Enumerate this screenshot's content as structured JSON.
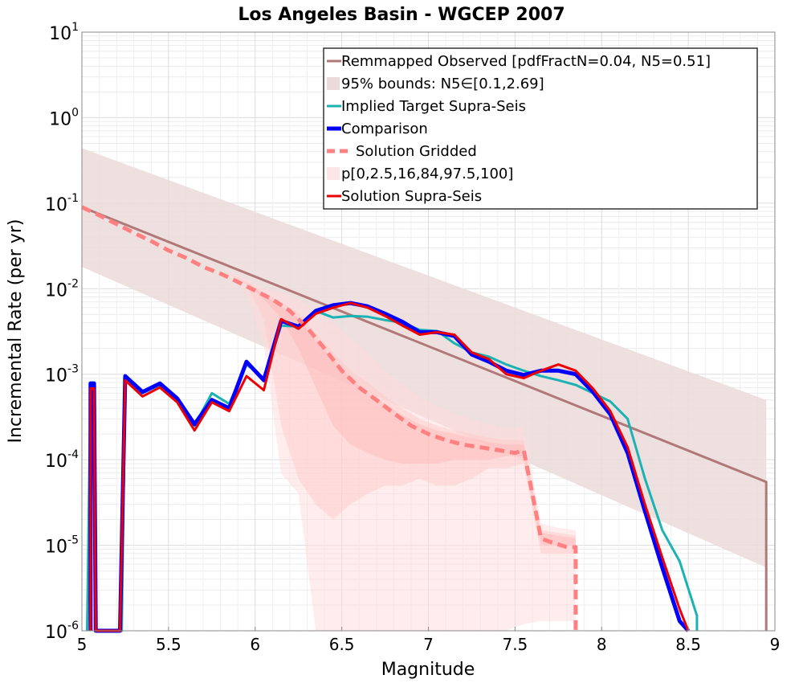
{
  "chart_data": {
    "type": "line",
    "title": "Los Angeles Basin - WGCEP 2007",
    "xlabel": "Magnitude",
    "ylabel": "Incremental Rate (per yr)",
    "xlim": [
      5,
      9
    ],
    "ylim_log10": [
      -6,
      1
    ],
    "y_scale": "log",
    "grid": true,
    "legend_position": "top-right",
    "x_ticks": [
      "5",
      "5.5",
      "6",
      "6.5",
      "7",
      "7.5",
      "8",
      "8.5",
      "9"
    ],
    "y_ticks": [
      {
        "base": "10",
        "exp": "1"
      },
      {
        "base": "10",
        "exp": "0"
      },
      {
        "base": "10",
        "exp": "-1"
      },
      {
        "base": "10",
        "exp": "-2"
      },
      {
        "base": "10",
        "exp": "-3"
      },
      {
        "base": "10",
        "exp": "-4"
      },
      {
        "base": "10",
        "exp": "-5"
      },
      {
        "base": "10",
        "exp": "-6"
      }
    ],
    "legend": [
      {
        "label": "Remmapped Observed [pdfFractN=0.04, N5=0.51]",
        "style": "line",
        "color": "#b07878",
        "width": 3
      },
      {
        "label": "95% bounds: N5∈[0.1,2.69]",
        "style": "band",
        "color": "#ecdada"
      },
      {
        "label": "Implied Target Supra-Seis",
        "style": "line",
        "color": "#1ab3b3",
        "width": 3
      },
      {
        "label": "Comparison",
        "style": "line",
        "color": "#0000ff",
        "width": 5
      },
      {
        "label": "Solution Gridded",
        "style": "dash",
        "color": "#ff8080",
        "width": 5
      },
      {
        "label": "p[0,2.5,16,84,97.5,100]",
        "style": "band",
        "color": "#ffe6e6"
      },
      {
        "label": "Solution Supra-Seis",
        "style": "line",
        "color": "#ee0000",
        "width": 3
      }
    ],
    "series": {
      "observed": {
        "color": "#b07878",
        "x": [
          5.0,
          8.95,
          8.95
        ],
        "y": [
          0.09,
          5.5e-05,
          1e-06
        ]
      },
      "observed_bounds": {
        "color": "#ecdada",
        "x": [
          5.0,
          8.95
        ],
        "lower": [
          0.018,
          5.5e-06
        ],
        "upper": [
          0.44,
          0.0005
        ]
      },
      "implied_target": {
        "color": "#1ab3b3",
        "x": [
          5.03,
          5.05,
          5.07,
          5.08,
          5.23,
          5.25,
          5.35,
          5.45,
          5.55,
          5.65,
          5.75,
          5.85,
          5.95,
          6.05,
          6.15,
          6.25,
          6.35,
          6.45,
          6.55,
          6.65,
          6.75,
          6.85,
          6.95,
          7.05,
          7.15,
          7.25,
          7.35,
          7.45,
          7.55,
          7.65,
          7.75,
          7.85,
          7.95,
          8.05,
          8.15,
          8.25,
          8.35,
          8.45,
          8.55,
          8.55
        ],
        "y": [
          1e-06,
          0.0008,
          0.0008,
          1e-06,
          1e-06,
          0.00095,
          0.0006,
          0.00075,
          0.0005,
          0.00025,
          0.0006,
          0.00045,
          0.0013,
          0.0009,
          0.0037,
          0.0036,
          0.0055,
          0.0046,
          0.0048,
          0.0047,
          0.0043,
          0.004,
          0.0033,
          0.0032,
          0.0023,
          0.0018,
          0.0016,
          0.0013,
          0.0011,
          0.00095,
          0.00085,
          0.00075,
          0.0006,
          0.00048,
          0.0003,
          6e-05,
          1.5e-05,
          6.5e-06,
          1.5e-06,
          1e-06
        ]
      },
      "comparison": {
        "color": "#0000ff",
        "x": [
          5.05,
          5.05,
          5.07,
          5.08,
          5.22,
          5.25,
          5.35,
          5.45,
          5.55,
          5.65,
          5.75,
          5.85,
          5.95,
          6.05,
          6.15,
          6.25,
          6.35,
          6.45,
          6.55,
          6.65,
          6.75,
          6.85,
          6.95,
          7.05,
          7.15,
          7.25,
          7.35,
          7.45,
          7.55,
          7.65,
          7.75,
          7.85,
          7.95,
          8.05,
          8.15,
          8.25,
          8.35,
          8.45,
          8.5
        ],
        "y": [
          1e-06,
          0.00078,
          0.00078,
          1e-06,
          1e-06,
          0.00095,
          0.00062,
          0.00078,
          0.00052,
          0.00026,
          0.0005,
          0.0004,
          0.0014,
          0.00085,
          0.0042,
          0.0036,
          0.0055,
          0.0064,
          0.0068,
          0.0062,
          0.0051,
          0.0041,
          0.0031,
          0.0031,
          0.0028,
          0.0017,
          0.0014,
          0.0011,
          0.00098,
          0.0011,
          0.0011,
          0.001,
          0.00062,
          0.00034,
          0.00012,
          2.5e-05,
          5.5e-06,
          1.3e-06,
          1e-06
        ]
      },
      "solution_supra": {
        "color": "#ee0000",
        "x": [
          5.05,
          5.05,
          5.07,
          5.08,
          5.22,
          5.25,
          5.35,
          5.45,
          5.55,
          5.65,
          5.75,
          5.85,
          5.95,
          6.05,
          6.15,
          6.25,
          6.35,
          6.45,
          6.55,
          6.65,
          6.75,
          6.85,
          6.95,
          7.05,
          7.15,
          7.25,
          7.35,
          7.45,
          7.55,
          7.65,
          7.75,
          7.85,
          7.95,
          8.05,
          8.15,
          8.25,
          8.35,
          8.45,
          8.5
        ],
        "y": [
          1e-06,
          0.00068,
          0.00068,
          1e-06,
          1e-06,
          0.00085,
          0.00055,
          0.0007,
          0.00047,
          0.00022,
          0.00047,
          0.00037,
          0.00095,
          0.00065,
          0.0044,
          0.0034,
          0.0051,
          0.006,
          0.0068,
          0.006,
          0.0048,
          0.0037,
          0.0029,
          0.0031,
          0.0029,
          0.0018,
          0.0015,
          0.001,
          0.0009,
          0.0011,
          0.0013,
          0.0011,
          0.00068,
          0.00037,
          0.00014,
          3e-05,
          7.2e-06,
          1.8e-06,
          1e-06
        ]
      },
      "solution_gridded": {
        "color": "#ff8080",
        "x": [
          5.0,
          5.1,
          5.2,
          5.3,
          5.4,
          5.5,
          5.6,
          5.7,
          5.8,
          5.9,
          6.0,
          6.1,
          6.2,
          6.3,
          6.4,
          6.5,
          6.6,
          6.7,
          6.8,
          6.9,
          7.0,
          7.1,
          7.2,
          7.3,
          7.4,
          7.5,
          7.55,
          7.6,
          7.65,
          7.7,
          7.8,
          7.85,
          7.85
        ],
        "y": [
          0.09,
          0.072,
          0.057,
          0.045,
          0.036,
          0.028,
          0.023,
          0.018,
          0.015,
          0.012,
          0.0095,
          0.0075,
          0.0055,
          0.0035,
          0.002,
          0.0011,
          0.0007,
          0.0005,
          0.00035,
          0.00025,
          0.0002,
          0.00017,
          0.00015,
          0.00014,
          0.00013,
          0.00012,
          0.00013,
          4e-05,
          1.2e-05,
          1.1e-05,
          9.5e-06,
          9.5e-06,
          1e-06
        ]
      },
      "gridded_bands": {
        "color": "#ffc8c8",
        "x": [
          5.85,
          5.95,
          6.05,
          6.15,
          6.25,
          6.35,
          6.45,
          6.55,
          6.65,
          6.75,
          6.85,
          6.95,
          7.05,
          7.15,
          7.25,
          7.35,
          7.45,
          7.55,
          7.65,
          7.75,
          7.85
        ],
        "outer_lower": [
          0.014,
          0.009,
          0.0022,
          7e-05,
          4e-05,
          1e-06,
          1e-06,
          1e-06,
          1e-06,
          1e-06,
          1e-06,
          1e-06,
          1e-06,
          1e-06,
          1e-06,
          1e-06,
          1e-06,
          1.2e-06,
          1.3e-06,
          1.3e-06,
          1.3e-06
        ],
        "outer_upper": [
          0.016,
          0.013,
          0.01,
          0.009,
          0.0075,
          0.0055,
          0.004,
          0.0026,
          0.0018,
          0.0011,
          0.00075,
          0.00055,
          0.00042,
          0.00035,
          0.0003,
          0.00026,
          0.00024,
          0.00024,
          1.8e-05,
          1.6e-05,
          1.5e-05
        ],
        "mid_lower": [
          0.015,
          0.011,
          0.0045,
          0.00025,
          6e-05,
          3e-05,
          2e-05,
          3e-05,
          4e-05,
          5e-05,
          5e-05,
          6e-05,
          5e-05,
          5e-05,
          6e-05,
          8e-05,
          8e-05,
          9e-05,
          8e-06,
          8e-06,
          8e-06
        ],
        "mid_upper": [
          0.015,
          0.012,
          0.009,
          0.007,
          0.0052,
          0.003,
          0.0018,
          0.0011,
          0.0008,
          0.00055,
          0.0004,
          0.0003,
          0.00025,
          0.00022,
          0.0002,
          0.00018,
          0.00017,
          0.00017,
          1.5e-05,
          1.4e-05,
          1.3e-05
        ],
        "inner_lower": [
          0.015,
          0.012,
          0.0075,
          0.0045,
          0.002,
          0.0007,
          0.00025,
          0.00015,
          0.00012,
          0.0001,
          9e-05,
          9e-05,
          9e-05,
          0.0001,
          0.0001,
          0.0001,
          0.00011,
          0.00011,
          1e-05,
          1e-05,
          1e-05
        ],
        "inner_upper": [
          0.015,
          0.012,
          0.0085,
          0.0062,
          0.0045,
          0.0025,
          0.0015,
          0.0009,
          0.0006,
          0.00045,
          0.00033,
          0.00026,
          0.00022,
          0.0002,
          0.00018,
          0.00016,
          0.00015,
          0.00015,
          1.4e-05,
          1.3e-05,
          1.2e-05
        ]
      }
    }
  }
}
